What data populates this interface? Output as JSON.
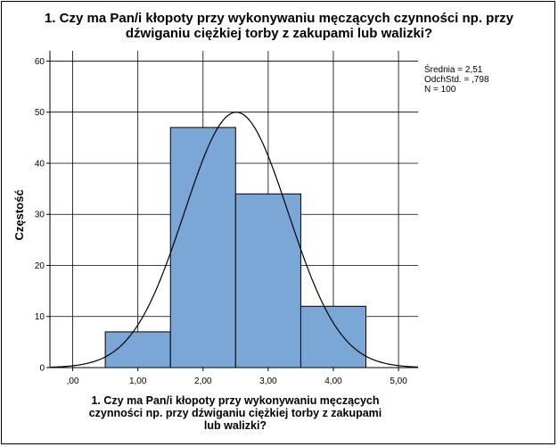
{
  "chart_data": {
    "type": "bar",
    "title_line1": "1. Czy ma Pan/i kłopoty przy wykonywaniu męczących czynności np. przy",
    "title_line2": "dźwiganiu ciężkiej torby z zakupami lub walizki?",
    "xlabel_line1": "1. Czy ma Pan/i kłopoty przy wykonywaniu męczących",
    "xlabel_line2": "czynności np. przy dźwiganiu ciężkiej torby z zakupami",
    "xlabel_line3": "lub walizki?",
    "ylabel": "Częstość",
    "xlim": [
      -0.35,
      5.3
    ],
    "ylim": [
      0,
      62
    ],
    "x_ticks": [
      0,
      1,
      2,
      3,
      4,
      5
    ],
    "x_tick_labels": [
      ",00",
      "1,00",
      "2,00",
      "3,00",
      "4,00",
      "5,00"
    ],
    "y_ticks": [
      0,
      10,
      20,
      30,
      40,
      50,
      60
    ],
    "y_tick_labels": [
      "0",
      "10",
      "20",
      "30",
      "40",
      "50",
      "60"
    ],
    "grid": true,
    "bins": [
      {
        "x0": 0.5,
        "x1": 1.5,
        "value": 7
      },
      {
        "x0": 1.5,
        "x1": 2.5,
        "value": 47
      },
      {
        "x0": 2.5,
        "x1": 3.5,
        "value": 34
      },
      {
        "x0": 3.5,
        "x1": 4.5,
        "value": 12
      }
    ],
    "bar_color": "#7ba7d6",
    "normal_curve": {
      "mean": 2.51,
      "sd": 0.798,
      "n": 100,
      "bin_width": 1
    },
    "stats": {
      "mean": "Średnia = 2,51",
      "sd": "OdchStd. = ,798",
      "n": "N = 100"
    }
  }
}
